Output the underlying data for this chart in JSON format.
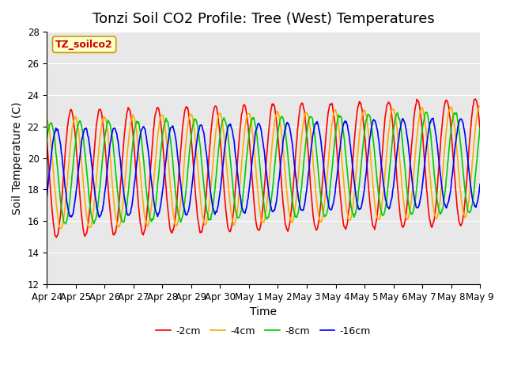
{
  "title": "Tonzi Soil CO2 Profile: Tree (West) Temperatures",
  "xlabel": "Time",
  "ylabel": "Soil Temperature (C)",
  "ylim": [
    12,
    28
  ],
  "legend_label": "TZ_soilco2",
  "series_labels": [
    "-2cm",
    "-4cm",
    "-8cm",
    "-16cm"
  ],
  "series_colors": [
    "#ff0000",
    "#ffaa00",
    "#00cc00",
    "#0000ff"
  ],
  "background_color": "#e8e8e8",
  "tick_labels": [
    "Apr 24",
    "Apr 25",
    "Apr 26",
    "Apr 27",
    "Apr 28",
    "Apr 29",
    "Apr 30",
    "May 1",
    "May 2",
    "May 3",
    "May 4",
    "May 5",
    "May 6",
    "May 7",
    "May 8",
    "May 9"
  ],
  "n_days": 15,
  "points_per_day": 48,
  "base_min": 15.0,
  "base_max": 23.0,
  "trend_slope": 0.05,
  "phase_offsets": [
    0.0,
    0.15,
    0.3,
    0.5
  ],
  "amp_offsets": [
    0.0,
    -0.5,
    -0.8,
    -1.2
  ],
  "title_fontsize": 13,
  "label_fontsize": 10,
  "tick_fontsize": 8.5,
  "legend_fontsize": 9,
  "line_width": 1.2
}
